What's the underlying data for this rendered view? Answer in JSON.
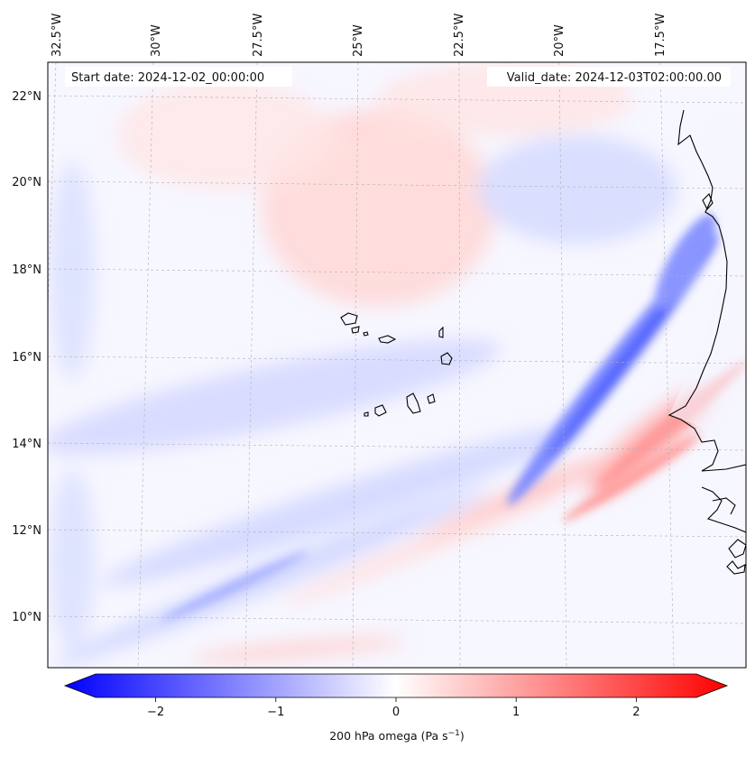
{
  "title_left": "Start date: 2024-12-02_00:00:00",
  "title_right": "Valid_date: 2024-12-03T02:00:00.00",
  "lon_labels": [
    "32.5°W",
    "30°W",
    "27.5°W",
    "25°W",
    "22.5°W",
    "20°W",
    "17.5°W"
  ],
  "lat_labels": [
    "22°N",
    "20°N",
    "18°N",
    "16°N",
    "14°N",
    "12°N",
    "10°N"
  ],
  "colorbar": {
    "label_prefix": "200 hPa omega (Pa s",
    "label_exp": "−1",
    "label_suffix": ")",
    "ticks": [
      {
        "value": -2,
        "label": "−2"
      },
      {
        "value": -1,
        "label": "−1"
      },
      {
        "value": 0,
        "label": "0"
      },
      {
        "value": 1,
        "label": "1"
      },
      {
        "value": 2,
        "label": "2"
      }
    ],
    "min": -2.5,
    "max": 2.5,
    "colors": {
      "negative": "#0000ff",
      "zero": "#ffffff",
      "positive": "#ff0000"
    }
  }
}
